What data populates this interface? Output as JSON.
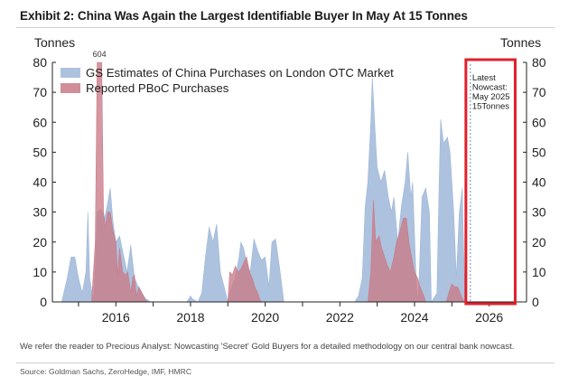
{
  "title": "Exhibit 2: China Was Again the Largest Identifiable Buyer In May At 15 Tonnes",
  "note": "We refer the reader to Precious Analyst: Nowcasting 'Secret' Gold Buyers for a detailed methodology on our central bank nowcast.",
  "source": "Source: Goldman Sachs, ZeroHedge, IMF, HMRC",
  "colors": {
    "gs_series": "#9fb7d8",
    "pboc_series": "#c97a86",
    "highlight_box": "#e0202a",
    "axis": "#222222"
  },
  "chart_data": {
    "type": "area",
    "xlabel": "",
    "ylabel_left": "Tonnes",
    "ylabel_right": "Tonnes",
    "ylim": [
      0,
      80
    ],
    "y_ticks": [
      0,
      10,
      20,
      30,
      40,
      50,
      60,
      70,
      80
    ],
    "xlim": [
      2014.3,
      2027.0
    ],
    "x_ticks": [
      2016,
      2018,
      2020,
      2022,
      2024,
      2026
    ],
    "x_tick_labels": [
      "2016",
      "2018",
      "2020",
      "2022",
      "2024",
      "2026"
    ],
    "legend_position": "top-left",
    "series": [
      {
        "name": "GS Estimates of China Purchases on London OTC Market",
        "color": "#9fb7d8",
        "points": [
          [
            2014.55,
            0
          ],
          [
            2014.7,
            8
          ],
          [
            2014.8,
            15
          ],
          [
            2014.9,
            15
          ],
          [
            2015.0,
            8
          ],
          [
            2015.1,
            3
          ],
          [
            2015.2,
            10
          ],
          [
            2015.25,
            30
          ],
          [
            2015.3,
            8
          ],
          [
            2015.4,
            0
          ],
          [
            2015.45,
            12
          ],
          [
            2015.5,
            30
          ],
          [
            2015.6,
            31
          ],
          [
            2015.7,
            28
          ],
          [
            2015.78,
            33
          ],
          [
            2015.85,
            38
          ],
          [
            2015.92,
            27
          ],
          [
            2016.0,
            20
          ],
          [
            2016.1,
            22
          ],
          [
            2016.2,
            16
          ],
          [
            2016.3,
            10
          ],
          [
            2016.4,
            19
          ],
          [
            2016.5,
            8
          ],
          [
            2016.6,
            5
          ],
          [
            2016.7,
            3
          ],
          [
            2016.8,
            1
          ],
          [
            2016.95,
            0
          ],
          [
            2017.9,
            0
          ],
          [
            2018.0,
            2
          ],
          [
            2018.05,
            1
          ],
          [
            2018.2,
            0
          ],
          [
            2018.3,
            3
          ],
          [
            2018.4,
            15
          ],
          [
            2018.5,
            25
          ],
          [
            2018.6,
            20
          ],
          [
            2018.7,
            26
          ],
          [
            2018.8,
            10
          ],
          [
            2018.9,
            5
          ],
          [
            2019.0,
            0
          ],
          [
            2019.1,
            5
          ],
          [
            2019.2,
            8
          ],
          [
            2019.3,
            15
          ],
          [
            2019.35,
            20
          ],
          [
            2019.42,
            18
          ],
          [
            2019.5,
            13
          ],
          [
            2019.6,
            10
          ],
          [
            2019.7,
            21
          ],
          [
            2019.8,
            17
          ],
          [
            2019.9,
            14
          ],
          [
            2020.0,
            15
          ],
          [
            2020.1,
            5
          ],
          [
            2020.18,
            20
          ],
          [
            2020.28,
            21
          ],
          [
            2020.4,
            10
          ],
          [
            2020.5,
            0
          ],
          [
            2022.4,
            0
          ],
          [
            2022.5,
            2
          ],
          [
            2022.6,
            8
          ],
          [
            2022.68,
            32
          ],
          [
            2022.75,
            40
          ],
          [
            2022.83,
            60
          ],
          [
            2022.87,
            75
          ],
          [
            2022.93,
            60
          ],
          [
            2023.0,
            45
          ],
          [
            2023.1,
            40
          ],
          [
            2023.2,
            44
          ],
          [
            2023.3,
            35
          ],
          [
            2023.38,
            30
          ],
          [
            2023.45,
            35
          ],
          [
            2023.55,
            20
          ],
          [
            2023.65,
            32
          ],
          [
            2023.75,
            40
          ],
          [
            2023.82,
            50
          ],
          [
            2023.9,
            35
          ],
          [
            2023.95,
            40
          ],
          [
            2024.05,
            5
          ],
          [
            2024.1,
            0
          ],
          [
            2024.2,
            35
          ],
          [
            2024.3,
            38
          ],
          [
            2024.4,
            30
          ],
          [
            2024.45,
            0
          ],
          [
            2024.6,
            3
          ],
          [
            2024.65,
            35
          ],
          [
            2024.7,
            61
          ],
          [
            2024.78,
            53
          ],
          [
            2024.88,
            55
          ],
          [
            2024.95,
            50
          ],
          [
            2025.05,
            30
          ],
          [
            2025.12,
            8
          ],
          [
            2025.2,
            30
          ],
          [
            2025.28,
            38
          ],
          [
            2025.33,
            10
          ],
          [
            2025.37,
            0
          ]
        ]
      },
      {
        "name": "Reported PBoC Purchases",
        "color": "#c97a86",
        "points": [
          [
            2015.35,
            0
          ],
          [
            2015.45,
            20
          ],
          [
            2015.5,
            80
          ],
          [
            2015.62,
            80
          ],
          [
            2015.67,
            30
          ],
          [
            2015.72,
            25
          ],
          [
            2015.78,
            30
          ],
          [
            2015.85,
            30
          ],
          [
            2015.92,
            24
          ],
          [
            2016.0,
            20
          ],
          [
            2016.05,
            9
          ],
          [
            2016.1,
            18
          ],
          [
            2016.18,
            10
          ],
          [
            2016.25,
            9
          ],
          [
            2016.32,
            10
          ],
          [
            2016.4,
            3
          ],
          [
            2016.45,
            8
          ],
          [
            2016.5,
            9
          ],
          [
            2016.55,
            2
          ],
          [
            2016.62,
            5
          ],
          [
            2016.7,
            3
          ],
          [
            2016.78,
            1
          ],
          [
            2016.85,
            0
          ],
          [
            2019.0,
            0
          ],
          [
            2019.05,
            10
          ],
          [
            2019.12,
            9
          ],
          [
            2019.2,
            12
          ],
          [
            2019.27,
            10
          ],
          [
            2019.35,
            11
          ],
          [
            2019.42,
            13
          ],
          [
            2019.5,
            15
          ],
          [
            2019.58,
            10
          ],
          [
            2019.65,
            8
          ],
          [
            2019.72,
            5
          ],
          [
            2019.8,
            3
          ],
          [
            2019.85,
            1
          ],
          [
            2019.9,
            0
          ],
          [
            2022.75,
            0
          ],
          [
            2022.83,
            10
          ],
          [
            2022.9,
            34
          ],
          [
            2022.96,
            20
          ],
          [
            2023.05,
            22
          ],
          [
            2023.12,
            18
          ],
          [
            2023.2,
            15
          ],
          [
            2023.28,
            12
          ],
          [
            2023.35,
            10
          ],
          [
            2023.45,
            15
          ],
          [
            2023.52,
            20
          ],
          [
            2023.6,
            23
          ],
          [
            2023.7,
            28
          ],
          [
            2023.78,
            28
          ],
          [
            2023.85,
            20
          ],
          [
            2023.92,
            15
          ],
          [
            2024.0,
            10
          ],
          [
            2024.08,
            8
          ],
          [
            2024.15,
            5
          ],
          [
            2024.25,
            2
          ],
          [
            2024.3,
            0
          ],
          [
            2024.85,
            0
          ],
          [
            2024.92,
            3
          ],
          [
            2025.0,
            6
          ],
          [
            2025.08,
            5
          ],
          [
            2025.16,
            5
          ],
          [
            2025.25,
            2
          ],
          [
            2025.33,
            0
          ]
        ]
      }
    ],
    "annotations": [
      {
        "text": "604",
        "x": 2015.56,
        "y": 80
      }
    ],
    "nowcast_box": {
      "label": "Latest Nowcast: May 2025 15Tonnes",
      "lines": [
        "Latest",
        "Nowcast:",
        "May 2025",
        "15Tonnes"
      ],
      "x_start": 2025.4,
      "x_end": 2026.6
    }
  }
}
